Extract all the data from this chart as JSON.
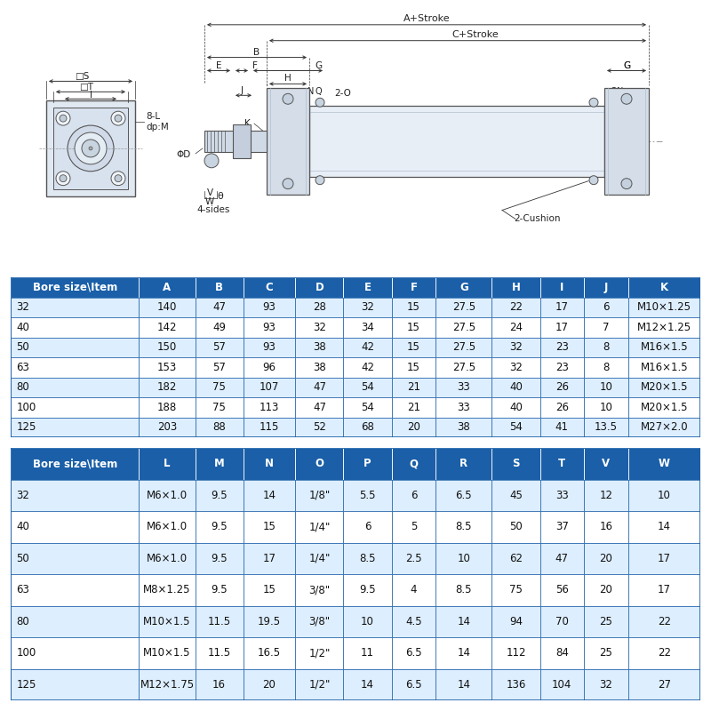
{
  "bg_color": "#ffffff",
  "header_color": "#1a5fa8",
  "header_text_color": "#ffffff",
  "row_alt_color": "#ddeeff",
  "row_normal_color": "#ffffff",
  "border_color": "#1a5fa8",
  "table1_headers": [
    "Bore size\\Item",
    "A",
    "B",
    "C",
    "D",
    "E",
    "F",
    "G",
    "H",
    "I",
    "J",
    "K"
  ],
  "table1_rows": [
    [
      "32",
      "140",
      "47",
      "93",
      "28",
      "32",
      "15",
      "27.5",
      "22",
      "17",
      "6",
      "M10×1.25"
    ],
    [
      "40",
      "142",
      "49",
      "93",
      "32",
      "34",
      "15",
      "27.5",
      "24",
      "17",
      "7",
      "M12×1.25"
    ],
    [
      "50",
      "150",
      "57",
      "93",
      "38",
      "42",
      "15",
      "27.5",
      "32",
      "23",
      "8",
      "M16×1.5"
    ],
    [
      "63",
      "153",
      "57",
      "96",
      "38",
      "42",
      "15",
      "27.5",
      "32",
      "23",
      "8",
      "M16×1.5"
    ],
    [
      "80",
      "182",
      "75",
      "107",
      "47",
      "54",
      "21",
      "33",
      "40",
      "26",
      "10",
      "M20×1.5"
    ],
    [
      "100",
      "188",
      "75",
      "113",
      "47",
      "54",
      "21",
      "33",
      "40",
      "26",
      "10",
      "M20×1.5"
    ],
    [
      "125",
      "203",
      "88",
      "115",
      "52",
      "68",
      "20",
      "38",
      "54",
      "41",
      "13.5",
      "M27×2.0"
    ]
  ],
  "table2_headers": [
    "Bore size\\Item",
    "L",
    "M",
    "N",
    "O",
    "P",
    "Q",
    "R",
    "S",
    "T",
    "V",
    "W"
  ],
  "table2_rows": [
    [
      "32",
      "M6×1.0",
      "9.5",
      "14",
      "1/8\"",
      "5.5",
      "6",
      "6.5",
      "45",
      "33",
      "12",
      "10"
    ],
    [
      "40",
      "M6×1.0",
      "9.5",
      "15",
      "1/4\"",
      "6",
      "5",
      "8.5",
      "50",
      "37",
      "16",
      "14"
    ],
    [
      "50",
      "M6×1.0",
      "9.5",
      "17",
      "1/4\"",
      "8.5",
      "2.5",
      "10",
      "62",
      "47",
      "20",
      "17"
    ],
    [
      "63",
      "M8×1.25",
      "9.5",
      "15",
      "3/8\"",
      "9.5",
      "4",
      "8.5",
      "75",
      "56",
      "20",
      "17"
    ],
    [
      "80",
      "M10×1.5",
      "11.5",
      "19.5",
      "3/8\"",
      "10",
      "4.5",
      "14",
      "94",
      "70",
      "25",
      "22"
    ],
    [
      "100",
      "M10×1.5",
      "11.5",
      "16.5",
      "1/2\"",
      "11",
      "6.5",
      "14",
      "112",
      "84",
      "25",
      "22"
    ],
    [
      "125",
      "M12×1.75",
      "16",
      "20",
      "1/2\"",
      "14",
      "6.5",
      "14",
      "136",
      "104",
      "32",
      "27"
    ]
  ],
  "lc": "#555555",
  "lc_dim": "#333333"
}
